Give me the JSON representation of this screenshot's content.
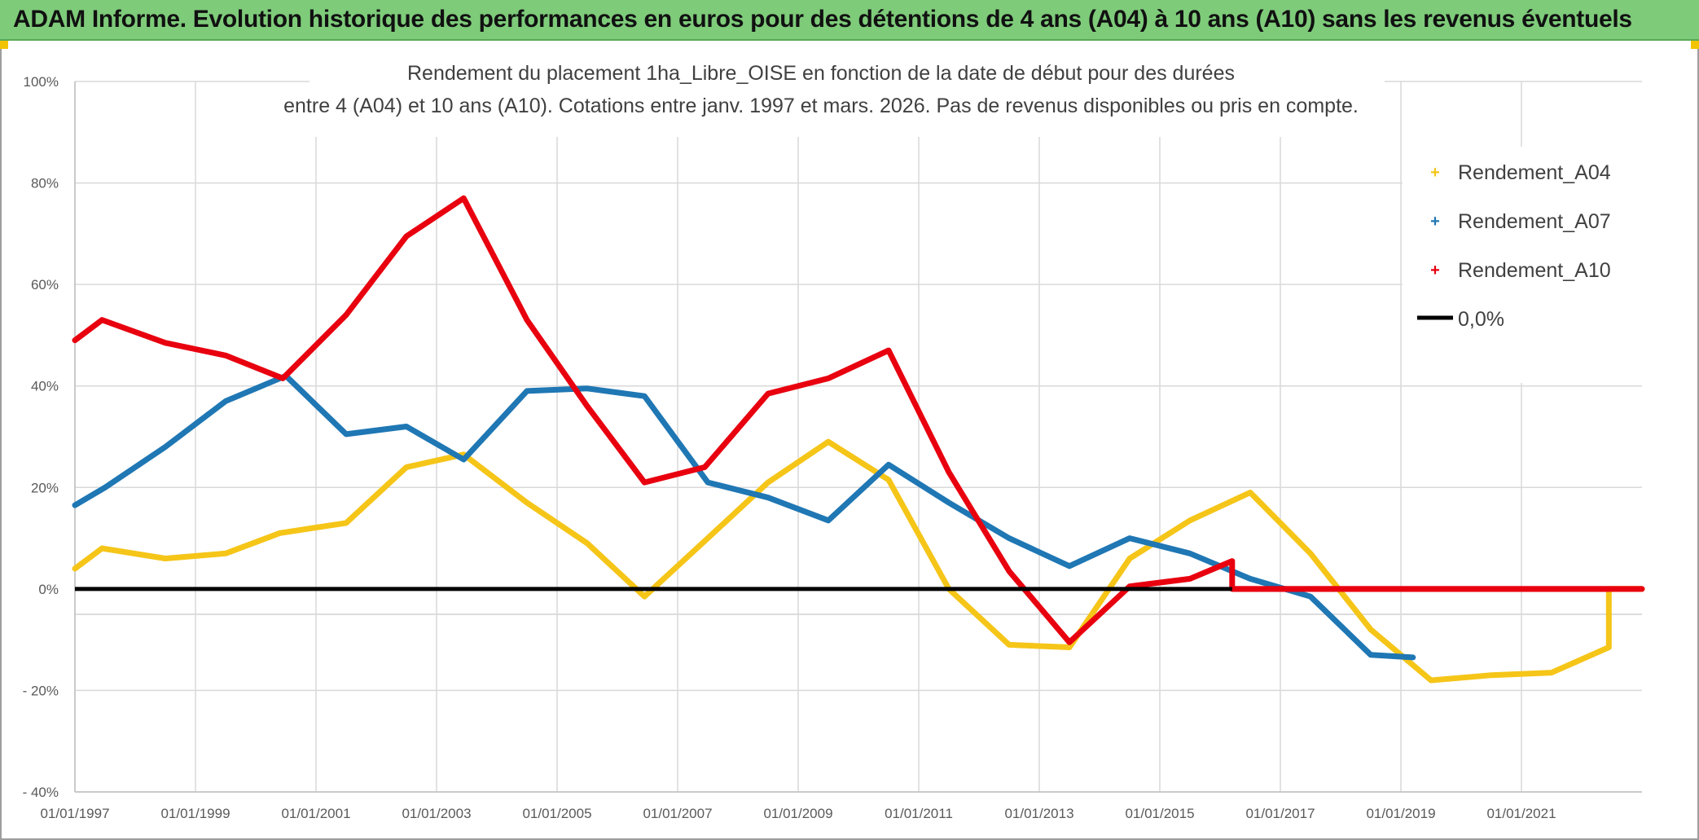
{
  "banner_title": "ADAM Informe. Evolution historique des performances en euros pour des détentions de 4 ans (A04) à 10 ans (A10) sans les revenus éventuels",
  "chart_data": {
    "type": "line",
    "title_line1": "Rendement du placement 1ha_Libre_OISE en fonction de la date de début pour des durées",
    "title_line2": "entre 4 (A04) et 10 ans (A10). Cotations entre janv. 1997 et mars. 2026. Pas de revenus disponibles ou pris en compte.",
    "xlabel": "",
    "ylabel": "",
    "x_range": [
      1997.0,
      2023.0
    ],
    "y_range": [
      -40,
      100
    ],
    "y_ticks": [
      100,
      80,
      60,
      40,
      20,
      0,
      -20,
      -40
    ],
    "y_tick_labels": [
      "100%",
      "80%",
      "60%",
      "40%",
      "20%",
      "0%",
      "- 20%",
      "- 40%"
    ],
    "x_tick_years": [
      1997,
      1999,
      2001,
      2003,
      2005,
      2007,
      2009,
      2011,
      2013,
      2015,
      2017,
      2019,
      2021
    ],
    "x_tick_labels": [
      "01/01/1997",
      "01/01/1999",
      "01/01/2001",
      "01/01/2003",
      "01/01/2005",
      "01/01/2007",
      "01/01/2009",
      "01/01/2011",
      "01/01/2013",
      "01/01/2015",
      "01/01/2017",
      "01/01/2019",
      "01/01/2021"
    ],
    "grid": true,
    "legend_position": "top-right",
    "series": [
      {
        "name": "Rendement_A04",
        "color": "#f5c518",
        "points": [
          [
            1997.0,
            4
          ],
          [
            1997.45,
            8
          ],
          [
            1998.5,
            6
          ],
          [
            1999.5,
            7
          ],
          [
            2000.4,
            11
          ],
          [
            2001.5,
            13
          ],
          [
            2002.5,
            24
          ],
          [
            2003.45,
            26.5
          ],
          [
            2004.5,
            17
          ],
          [
            2005.5,
            9
          ],
          [
            2006.45,
            -1.5
          ],
          [
            2007.5,
            10
          ],
          [
            2008.5,
            21
          ],
          [
            2009.5,
            29
          ],
          [
            2010.5,
            21.5
          ],
          [
            2011.5,
            0
          ],
          [
            2012.5,
            -11
          ],
          [
            2013.5,
            -11.5
          ],
          [
            2014.5,
            6
          ],
          [
            2015.5,
            13.5
          ],
          [
            2016.5,
            19
          ],
          [
            2017.5,
            7
          ],
          [
            2018.5,
            -8
          ],
          [
            2019.5,
            -18
          ],
          [
            2020.5,
            -17
          ],
          [
            2021.5,
            -16.5
          ],
          [
            2022.45,
            -11.5
          ],
          [
            2022.45,
            0
          ],
          [
            2023.0,
            0
          ]
        ]
      },
      {
        "name": "Rendement_A07",
        "color": "#1f77b4",
        "points": [
          [
            1997.0,
            16.5
          ],
          [
            1997.5,
            20
          ],
          [
            1998.5,
            28
          ],
          [
            1999.5,
            37
          ],
          [
            2000.5,
            42
          ],
          [
            2001.5,
            30.5
          ],
          [
            2002.5,
            32
          ],
          [
            2003.45,
            25.5
          ],
          [
            2004.5,
            39
          ],
          [
            2005.5,
            39.5
          ],
          [
            2006.45,
            38
          ],
          [
            2007.5,
            21
          ],
          [
            2008.5,
            18
          ],
          [
            2009.5,
            13.5
          ],
          [
            2010.5,
            24.5
          ],
          [
            2011.5,
            17
          ],
          [
            2012.5,
            10
          ],
          [
            2013.5,
            4.5
          ],
          [
            2014.5,
            10
          ],
          [
            2015.5,
            7
          ],
          [
            2016.5,
            2
          ],
          [
            2017.5,
            -1.5
          ],
          [
            2018.5,
            -13
          ],
          [
            2019.2,
            -13.5
          ]
        ]
      },
      {
        "name": "Rendement_A10",
        "color": "#e8000f",
        "points": [
          [
            1997.0,
            49
          ],
          [
            1997.45,
            53
          ],
          [
            1998.5,
            48.5
          ],
          [
            1999.5,
            46
          ],
          [
            2000.45,
            41.5
          ],
          [
            2001.5,
            54
          ],
          [
            2002.5,
            69.5
          ],
          [
            2003.45,
            77
          ],
          [
            2004.5,
            53
          ],
          [
            2005.5,
            36
          ],
          [
            2006.45,
            21
          ],
          [
            2007.45,
            24
          ],
          [
            2008.5,
            38.5
          ],
          [
            2009.5,
            41.5
          ],
          [
            2010.5,
            47
          ],
          [
            2011.5,
            23
          ],
          [
            2012.5,
            3.5
          ],
          [
            2013.5,
            -10.5
          ],
          [
            2014.5,
            0.5
          ],
          [
            2015.5,
            2
          ],
          [
            2016.2,
            5.5
          ],
          [
            2016.2,
            0
          ],
          [
            2023.0,
            0
          ]
        ]
      }
    ],
    "reference_line": {
      "name": "0,0%",
      "value": 0,
      "color": "#000000"
    }
  }
}
